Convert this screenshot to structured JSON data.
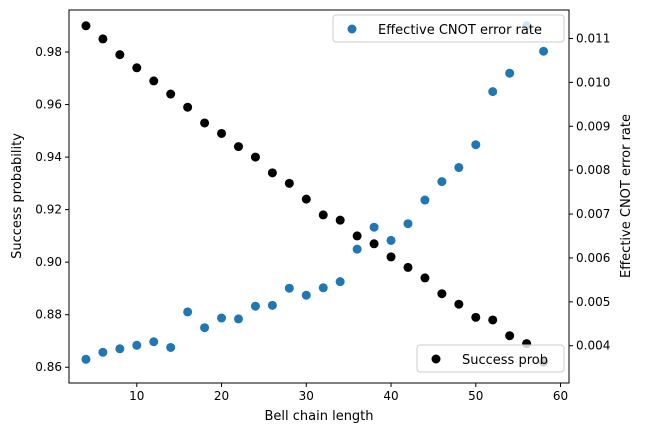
{
  "chart_data": {
    "type": "scatter",
    "xlabel": "Bell chain length",
    "ylabel_left": "Success probability",
    "ylabel_right": "Effective CNOT error rate",
    "xlim": [
      2,
      61
    ],
    "ylim_left": [
      0.854,
      0.996
    ],
    "ylim_right": [
      0.00315,
      0.01165
    ],
    "x_ticks": [
      10,
      20,
      30,
      40,
      50,
      60
    ],
    "y_left_ticks": [
      0.86,
      0.88,
      0.9,
      0.92,
      0.94,
      0.96,
      0.98
    ],
    "y_right_ticks": [
      0.004,
      0.005,
      0.006,
      0.007,
      0.008,
      0.009,
      0.01,
      0.011
    ],
    "series": [
      {
        "name": "Success prob",
        "axis": "left",
        "color": "#000000",
        "legend_position": "lower-right",
        "x": [
          4,
          6,
          8,
          10,
          12,
          14,
          16,
          18,
          20,
          22,
          24,
          26,
          28,
          30,
          32,
          34,
          36,
          38,
          40,
          42,
          44,
          46,
          48,
          50,
          52,
          54,
          56,
          58
        ],
        "y": [
          0.99,
          0.985,
          0.979,
          0.974,
          0.969,
          0.964,
          0.959,
          0.953,
          0.949,
          0.944,
          0.94,
          0.934,
          0.93,
          0.924,
          0.918,
          0.916,
          0.91,
          0.907,
          0.902,
          0.898,
          0.894,
          0.888,
          0.884,
          0.879,
          0.878,
          0.872,
          0.869,
          0.862
        ]
      },
      {
        "name": "Effective CNOT error rate",
        "axis": "right",
        "color": "#1f77b4",
        "legend_position": "upper-right",
        "x": [
          4,
          6,
          8,
          10,
          12,
          14,
          16,
          18,
          20,
          22,
          24,
          26,
          28,
          30,
          32,
          34,
          36,
          38,
          40,
          42,
          44,
          46,
          48,
          50,
          52,
          54,
          56,
          58
        ],
        "y": [
          0.00369,
          0.00385,
          0.00393,
          0.00401,
          0.00409,
          0.00396,
          0.00477,
          0.00441,
          0.00463,
          0.00461,
          0.0049,
          0.00492,
          0.00531,
          0.00515,
          0.00532,
          0.00546,
          0.0062,
          0.0067,
          0.0064,
          0.00678,
          0.00732,
          0.00774,
          0.00806,
          0.00858,
          0.00979,
          0.01021,
          0.01129,
          0.01071
        ]
      }
    ]
  }
}
